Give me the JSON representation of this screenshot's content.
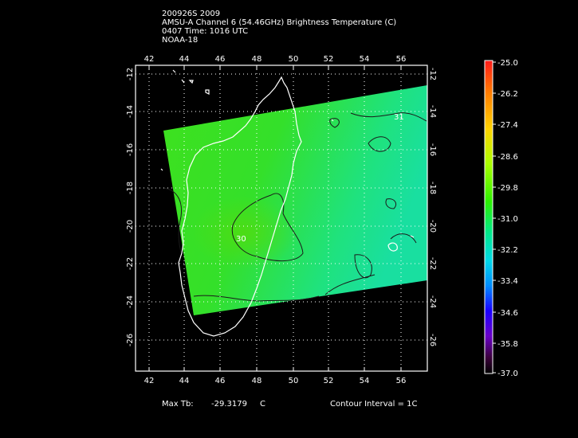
{
  "header": {
    "line1": "200926S 2009",
    "line2": "AMSU-A Channel 6 (54.46GHz) Brightness Temperature (C)",
    "line3": "0407 Time: 1016 UTC",
    "line4": "NOAA-18"
  },
  "map": {
    "lon_ticks": [
      "42",
      "44",
      "46",
      "48",
      "50",
      "52",
      "54",
      "56"
    ],
    "lat_ticks": [
      "-12",
      "-14",
      "-16",
      "-18",
      "-20",
      "-22",
      "-24",
      "-26"
    ],
    "contour_labels": [
      "30",
      "31"
    ]
  },
  "colorbar": {
    "labels": [
      "-25.0",
      "-26.2",
      "-27.4",
      "-28.6",
      "-29.8",
      "-31.0",
      "-32.2",
      "-33.4",
      "-34.6",
      "-35.8",
      "-37.0"
    ]
  },
  "footer": {
    "max_label": "Max Tb:",
    "max_value": "-29.3179",
    "max_unit": "C",
    "contour_interval": "Contour Interval = 1C"
  }
}
